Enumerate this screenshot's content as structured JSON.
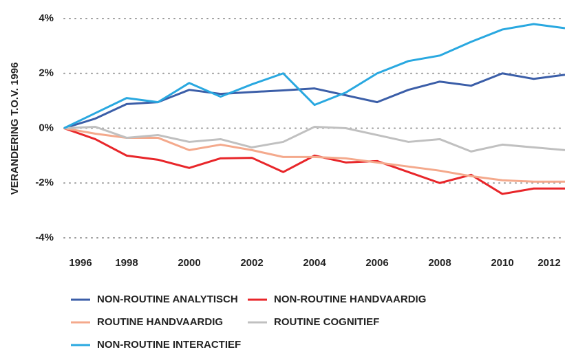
{
  "chart_data": {
    "type": "line",
    "y_label": "VERANDERING T.O.V. 1996",
    "x": [
      1996,
      1997,
      1998,
      1999,
      2000,
      2001,
      2002,
      2003,
      2004,
      2005,
      2006,
      2007,
      2008,
      2009,
      2010,
      2011,
      2012
    ],
    "xlim": [
      1996,
      2012
    ],
    "xticks": [
      1996,
      1998,
      2000,
      2002,
      2004,
      2006,
      2008,
      2010,
      2012
    ],
    "ylim": [
      -4,
      4
    ],
    "yticks": [
      {
        "value": 4,
        "label": "4%"
      },
      {
        "value": 2,
        "label": "2%"
      },
      {
        "value": 0,
        "label": "0%"
      },
      {
        "value": -2,
        "label": "-2%"
      },
      {
        "value": -4,
        "label": "-4%"
      }
    ],
    "grid": true,
    "series": [
      {
        "name": "NON-ROUTINE ANALYTISCH",
        "color": "#3b5ea8",
        "values": [
          0,
          0.35,
          0.88,
          0.95,
          1.4,
          1.25,
          1.32,
          1.38,
          1.45,
          1.2,
          0.95,
          1.4,
          1.7,
          1.55,
          2.0,
          1.8,
          1.95
        ]
      },
      {
        "name": "NON-ROUTINE HANDVAARDIG",
        "color": "#e8262a",
        "values": [
          0,
          -0.4,
          -1.0,
          -1.15,
          -1.45,
          -1.1,
          -1.08,
          -1.6,
          -1.0,
          -1.25,
          -1.2,
          -1.6,
          -2.0,
          -1.7,
          -2.4,
          -2.2,
          -2.2
        ]
      },
      {
        "name": "ROUTINE HANDVAARDIG",
        "color": "#f4a98c",
        "values": [
          0,
          -0.2,
          -0.35,
          -0.35,
          -0.8,
          -0.6,
          -0.8,
          -1.05,
          -1.05,
          -1.1,
          -1.25,
          -1.4,
          -1.55,
          -1.75,
          -1.9,
          -1.95,
          -1.95
        ]
      },
      {
        "name": "ROUTINE COGNITIEF",
        "color": "#c0c0c0",
        "values": [
          0,
          0.05,
          -0.35,
          -0.25,
          -0.5,
          -0.4,
          -0.7,
          -0.5,
          0.05,
          0.0,
          -0.25,
          -0.5,
          -0.4,
          -0.85,
          -0.6,
          -0.7,
          -0.8
        ]
      },
      {
        "name": "NON-ROUTINE INTERACTIEF",
        "color": "#29a8e0",
        "values": [
          0,
          0.55,
          1.1,
          0.95,
          1.65,
          1.15,
          1.6,
          2.0,
          0.85,
          1.3,
          2.0,
          2.45,
          2.65,
          3.15,
          3.6,
          3.8,
          3.65
        ]
      }
    ]
  }
}
